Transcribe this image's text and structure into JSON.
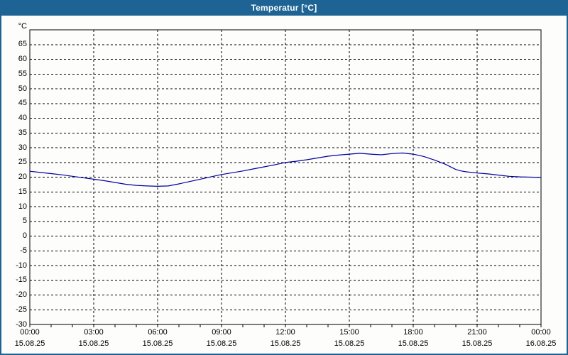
{
  "window": {
    "title": "Temperatur [°C]"
  },
  "colors": {
    "titlebar": "#1d6394",
    "window_border": "#1d6394",
    "title_text": "#ffffff",
    "background": "#fdfdfb",
    "frame": "#000000",
    "grid": "#000000",
    "series": "#0000a0",
    "label_text": "#000000"
  },
  "chart_data": {
    "type": "line",
    "title": "Temperatur [°C]",
    "y_unit_label": "°C",
    "ylim": [
      -30,
      70
    ],
    "ytick_step": 5,
    "ytick_labels": [
      65,
      60,
      55,
      50,
      45,
      40,
      35,
      30,
      25,
      20,
      15,
      10,
      5,
      0,
      -5,
      -10,
      -15,
      -20,
      -25,
      -30
    ],
    "xlim_hours": [
      0,
      24
    ],
    "minor_xtick_interval_hours": 1,
    "major_xtick_interval_hours": 3,
    "grid": "dashed",
    "legend": "none",
    "xticks": [
      {
        "hour": 0,
        "time": "00:00",
        "date": "15.08.25"
      },
      {
        "hour": 3,
        "time": "03:00",
        "date": "15.08.25"
      },
      {
        "hour": 6,
        "time": "06:00",
        "date": "15.08.25"
      },
      {
        "hour": 9,
        "time": "09:00",
        "date": "15.08.25"
      },
      {
        "hour": 12,
        "time": "12:00",
        "date": "15.08.25"
      },
      {
        "hour": 15,
        "time": "15:00",
        "date": "15.08.25"
      },
      {
        "hour": 18,
        "time": "18:00",
        "date": "15.08.25"
      },
      {
        "hour": 21,
        "time": "21:00",
        "date": "15.08.25"
      },
      {
        "hour": 24,
        "time": "00:00",
        "date": "16.08.25"
      }
    ],
    "series": [
      {
        "name": "Temperatur",
        "color": "#0000a0",
        "points": [
          [
            0,
            22.0
          ],
          [
            0.5,
            21.6
          ],
          [
            1,
            21.2
          ],
          [
            1.5,
            20.8
          ],
          [
            2,
            20.3
          ],
          [
            2.5,
            19.8
          ],
          [
            3,
            19.3
          ],
          [
            3.5,
            18.8
          ],
          [
            4,
            18.2
          ],
          [
            4.5,
            17.6
          ],
          [
            5,
            17.2
          ],
          [
            5.5,
            17.0
          ],
          [
            6,
            16.9
          ],
          [
            6.5,
            17.0
          ],
          [
            7,
            17.7
          ],
          [
            7.5,
            18.5
          ],
          [
            8,
            19.3
          ],
          [
            8.5,
            20.1
          ],
          [
            9,
            20.9
          ],
          [
            9.5,
            21.5
          ],
          [
            10,
            22.1
          ],
          [
            10.5,
            22.8
          ],
          [
            11,
            23.5
          ],
          [
            11.5,
            24.2
          ],
          [
            12,
            25.0
          ],
          [
            12.5,
            25.4
          ],
          [
            13,
            25.9
          ],
          [
            13.5,
            26.5
          ],
          [
            14,
            27.1
          ],
          [
            14.5,
            27.5
          ],
          [
            15,
            27.8
          ],
          [
            15.5,
            28.1
          ],
          [
            16,
            27.8
          ],
          [
            16.5,
            27.6
          ],
          [
            17,
            28.0
          ],
          [
            17.5,
            28.2
          ],
          [
            18,
            27.8
          ],
          [
            18.5,
            27.0
          ],
          [
            19,
            25.8
          ],
          [
            19.5,
            24.4
          ],
          [
            20,
            22.6
          ],
          [
            20.25,
            22.1
          ],
          [
            20.5,
            21.8
          ],
          [
            21,
            21.4
          ],
          [
            21.5,
            21.1
          ],
          [
            22,
            20.7
          ],
          [
            22.5,
            20.3
          ],
          [
            23,
            20.1
          ],
          [
            23.5,
            20.0
          ],
          [
            24,
            19.9
          ]
        ]
      }
    ]
  }
}
